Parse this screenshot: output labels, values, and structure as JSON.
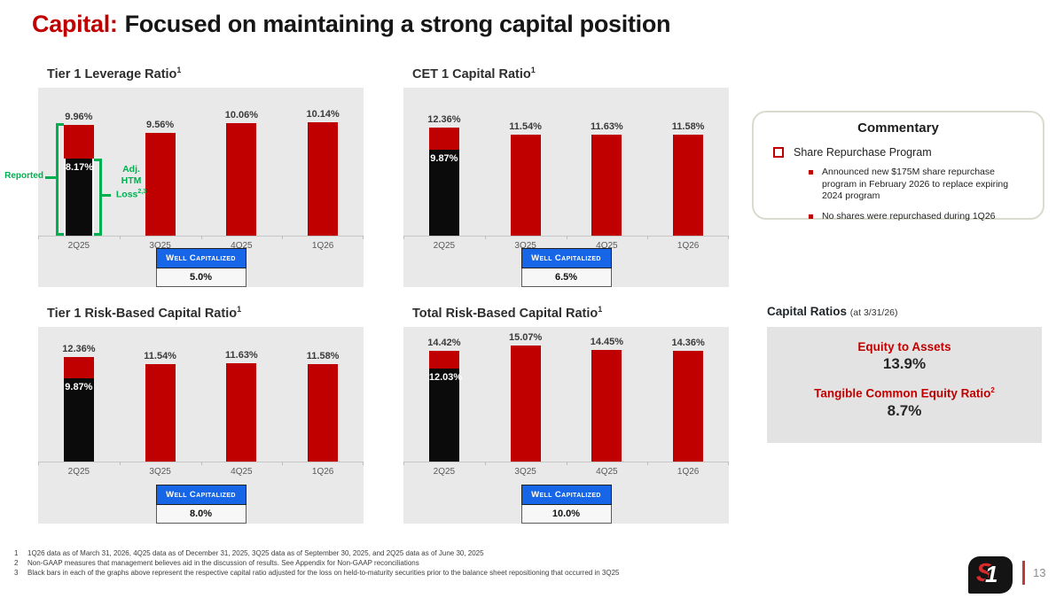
{
  "title": {
    "accent": "Capital:",
    "rest": "Focused on maintaining a strong capital position"
  },
  "colors": {
    "bar_red": "#C00000",
    "adjusted_black": "#0B0B0B",
    "annotation_green": "#00B050",
    "well_capitalized_blue": "#1766E8",
    "plot_background": "#E9E9E9",
    "capital_box_gray": "#E3E3E3",
    "title_accent_red": "#C00000"
  },
  "chart_data": [
    {
      "type": "bar",
      "title": "Tier 1 Leverage Ratio",
      "title_sup": "1",
      "categories": [
        "2Q25",
        "3Q25",
        "4Q25",
        "1Q26"
      ],
      "values": [
        9.96,
        9.56,
        10.06,
        10.14
      ],
      "value_labels": [
        "9.96%",
        "9.56%",
        "10.06%",
        "10.14%"
      ],
      "adjusted_bar": {
        "category": "2Q25",
        "value": 8.17,
        "label": "8.17%",
        "inset": true
      },
      "ylim": [
        4,
        12
      ],
      "bar_color": "#C00000",
      "well_capitalized_label": "Well Capitalized",
      "well_capitalized_value": "5.0%",
      "annotations": {
        "reported": "Reported",
        "adj_lines": [
          "Adj.",
          "HTM",
          "Loss"
        ],
        "adj_sup": "2,3"
      }
    },
    {
      "type": "bar",
      "title": "CET 1 Capital Ratio",
      "title_sup": "1",
      "categories": [
        "2Q25",
        "3Q25",
        "4Q25",
        "1Q26"
      ],
      "values": [
        12.36,
        11.54,
        11.63,
        11.58
      ],
      "value_labels": [
        "12.36%",
        "11.54%",
        "11.63%",
        "11.58%"
      ],
      "adjusted_bar": {
        "category": "2Q25",
        "value": 9.87,
        "label": "9.87%",
        "inset": false
      },
      "ylim": [
        0,
        17
      ],
      "bar_color": "#C00000",
      "well_capitalized_label": "Well Capitalized",
      "well_capitalized_value": "6.5%"
    },
    {
      "type": "bar",
      "title": "Tier 1 Risk-Based Capital Ratio",
      "title_sup": "1",
      "categories": [
        "2Q25",
        "3Q25",
        "4Q25",
        "1Q26"
      ],
      "values": [
        12.36,
        11.54,
        11.63,
        11.58
      ],
      "value_labels": [
        "12.36%",
        "11.54%",
        "11.63%",
        "11.58%"
      ],
      "adjusted_bar": {
        "category": "2Q25",
        "value": 9.87,
        "label": "9.87%",
        "inset": false
      },
      "ylim": [
        0,
        16
      ],
      "bar_color": "#C00000",
      "well_capitalized_label": "Well Capitalized",
      "well_capitalized_value": "8.0%"
    },
    {
      "type": "bar",
      "title": "Total Risk-Based Capital Ratio",
      "title_sup": "1",
      "categories": [
        "2Q25",
        "3Q25",
        "4Q25",
        "1Q26"
      ],
      "values": [
        14.42,
        15.07,
        14.45,
        14.36
      ],
      "value_labels": [
        "14.42%",
        "15.07%",
        "14.45%",
        "14.36%"
      ],
      "adjusted_bar": {
        "category": "2Q25",
        "value": 12.03,
        "label": "12.03%",
        "inset": false
      },
      "ylim": [
        0,
        17.5
      ],
      "bar_color": "#C00000",
      "well_capitalized_label": "Well Capitalized",
      "well_capitalized_value": "10.0%"
    }
  ],
  "commentary": {
    "title": "Commentary",
    "bullet": "Share Repurchase Program",
    "sub_bullets": [
      "Announced new $175M share repurchase program in February 2026 to replace expiring 2024 program",
      "No shares were repurchased during 1Q26"
    ]
  },
  "capital_ratios": {
    "heading": "Capital Ratios",
    "as_of": "(at 3/31/26)",
    "equity_label": "Equity to Assets",
    "equity_value": "13.9%",
    "tce_label": "Tangible Common Equity Ratio",
    "tce_sup": "2",
    "tce_value": "8.7%"
  },
  "footnotes": [
    {
      "num": "1",
      "text": "1Q26 data as of March 31, 2026, 4Q25 data as of December 31, 2025, 3Q25 data as of September 30, 2025, and 2Q25 data as of June 30, 2025"
    },
    {
      "num": "2",
      "text": "Non-GAAP measures that management believes aid in the discussion of results. See Appendix for Non-GAAP reconciliations"
    },
    {
      "num": "3",
      "text": "Black bars in each of the graphs above represent the respective capital ratio adjusted for the loss on held-to-maturity securities prior to the balance sheet repositioning that occurred in 3Q25"
    }
  ],
  "footer": {
    "page_number": "13",
    "logo_s": "S",
    "logo_one": "1"
  }
}
